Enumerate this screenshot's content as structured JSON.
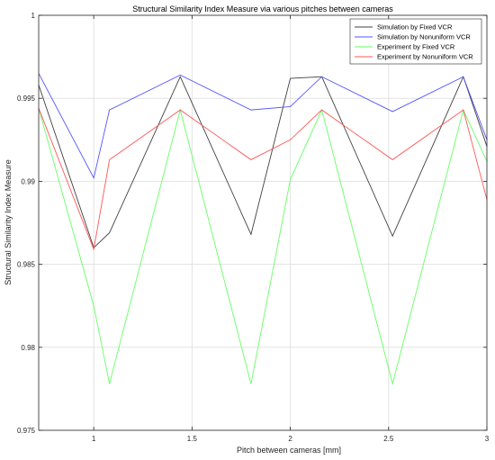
{
  "chart_data": {
    "type": "line",
    "title": "Structural Similarity Index Measure via various pitches between cameras",
    "xlabel": "Pitch between cameras [mm]",
    "ylabel": "Structural Similarity Index Measure",
    "xlim": [
      0.72,
      3.0
    ],
    "ylim": [
      0.975,
      1.0
    ],
    "xticks": [
      1,
      1.5,
      2,
      2.5,
      3
    ],
    "xtick_labels": [
      "1",
      "1.5",
      "2",
      "2.5",
      "3"
    ],
    "yticks": [
      0.975,
      0.98,
      0.985,
      0.99,
      0.995,
      1.0
    ],
    "ytick_labels": [
      "0.975",
      "0.98",
      "0.985",
      "0.99",
      "0.995",
      "1"
    ],
    "grid": true,
    "legend_position": "top-right",
    "series": [
      {
        "name": "Simulation by Fixed VCR",
        "color": "#404040",
        "x": [
          0.72,
          1.0,
          1.08,
          1.44,
          1.8,
          2.0,
          2.16,
          2.52,
          2.88,
          3.0
        ],
        "y": [
          0.9958,
          0.986,
          0.9869,
          0.9963,
          0.9868,
          0.9962,
          0.9963,
          0.9867,
          0.9963,
          0.9921
        ]
      },
      {
        "name": "Simulation by Nonuniform VCR",
        "color": "#5555ff",
        "x": [
          0.72,
          1.0,
          1.08,
          1.44,
          1.8,
          2.0,
          2.16,
          2.52,
          2.88,
          3.0
        ],
        "y": [
          0.9965,
          0.9902,
          0.9943,
          0.9964,
          0.9943,
          0.9945,
          0.9963,
          0.9942,
          0.9963,
          0.9925
        ]
      },
      {
        "name": "Experiment by Fixed VCR",
        "color": "#66ff66",
        "x": [
          0.72,
          1.0,
          1.08,
          1.44,
          1.8,
          2.0,
          2.16,
          2.52,
          2.88,
          3.0
        ],
        "y": [
          0.9944,
          0.9825,
          0.9778,
          0.9943,
          0.9778,
          0.9901,
          0.9943,
          0.9778,
          0.9943,
          0.9912
        ]
      },
      {
        "name": "Experiment by Nonuniform VCR",
        "color": "#ff5555",
        "x": [
          0.72,
          1.0,
          1.08,
          1.44,
          1.8,
          2.0,
          2.16,
          2.52,
          2.88,
          3.0
        ],
        "y": [
          0.9944,
          0.9859,
          0.9913,
          0.9943,
          0.9913,
          0.9925,
          0.9943,
          0.9913,
          0.9943,
          0.9889
        ]
      }
    ]
  }
}
